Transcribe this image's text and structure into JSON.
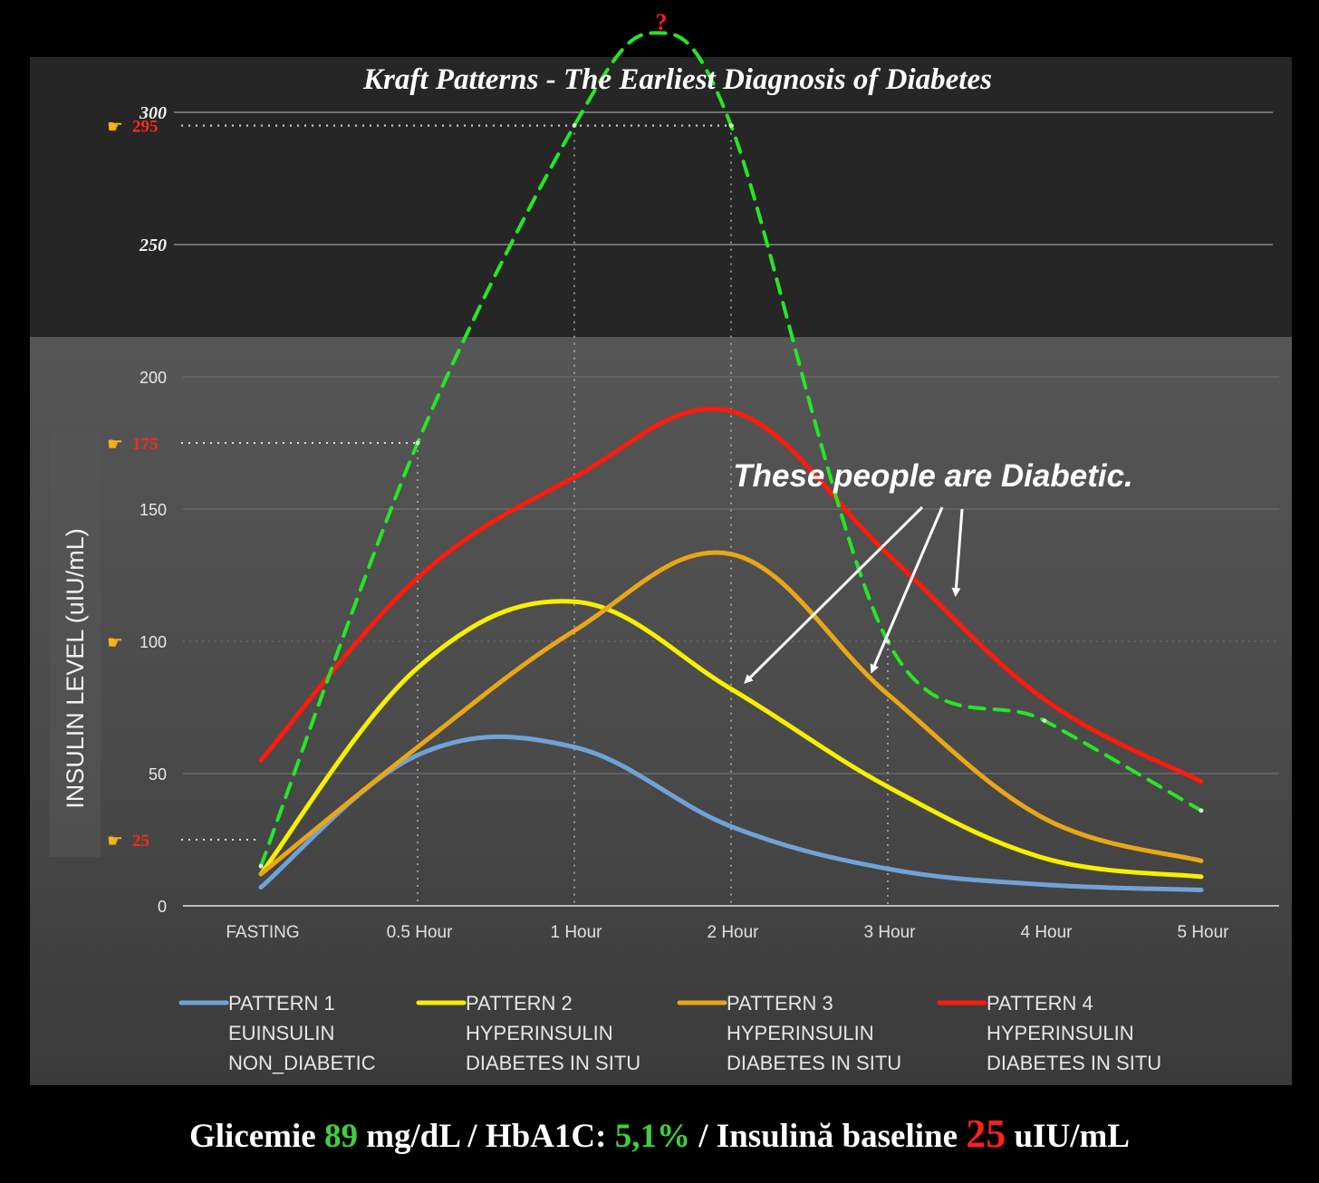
{
  "chart_data": {
    "type": "line",
    "title": "Kraft Patterns - The Earliest Diagnosis of Diabetes",
    "ylabel": "INSULIN LEVEL (uIU/mL)",
    "xlabel": "",
    "categories": [
      "FASTING",
      "0.5 Hour",
      "1 Hour",
      "2 Hour",
      "3 Hour",
      "4 Hour",
      "5 Hour"
    ],
    "y_ticks_lower": [
      "0",
      "50",
      "100",
      "150",
      "200"
    ],
    "y_ticks_upper": [
      "250",
      "300"
    ],
    "ylim": [
      0,
      300
    ],
    "grid": true,
    "legend_position": "bottom",
    "series": [
      {
        "name": "PATTERN 1",
        "subtitle1": "EUINSULIN",
        "subtitle2": "NON_DIABETIC",
        "color": "#6fa3d8",
        "values": [
          7,
          57,
          60,
          30,
          14,
          8,
          6
        ]
      },
      {
        "name": "PATTERN 2",
        "subtitle1": "HYPERINSULIN",
        "subtitle2": "DIABETES IN SITU",
        "color": "#f6f000",
        "values": [
          12,
          90,
          115,
          82,
          45,
          18,
          11
        ]
      },
      {
        "name": "PATTERN 3",
        "subtitle1": "HYPERINSULIN",
        "subtitle2": "DIABETES IN SITU",
        "color": "#e8a717",
        "values": [
          12,
          60,
          104,
          133,
          80,
          33,
          17
        ]
      },
      {
        "name": "PATTERN 4",
        "subtitle1": "HYPERINSULIN",
        "subtitle2": "DIABETES IN SITU",
        "color": "#ff1a0a",
        "values": [
          55,
          124,
          162,
          187,
          133,
          78,
          47
        ]
      },
      {
        "color": "#26e626",
        "dashed": true,
        "values": [
          15,
          175,
          295,
          295,
          100,
          70,
          36
        ],
        "peak_label": "?"
      }
    ],
    "reference_markers": [
      {
        "value": 295,
        "label": "295"
      },
      {
        "value": 175,
        "label": "175"
      },
      {
        "value": 100,
        "label": ""
      },
      {
        "value": 25,
        "label": "25"
      }
    ],
    "annotation": "These people are Diabetic."
  },
  "footer": {
    "glicemie_label": "Glicemie",
    "glicemie_value": "89",
    "glicemie_unit": "mg/dL  /",
    "hba1c_label": "HbA1C:",
    "hba1c_value": "5,1%",
    "insulina_label": "/ Insulină baseline",
    "insulina_value": "25",
    "insulina_unit": "uIU/mL"
  },
  "colors": {
    "background": "#000000",
    "upper_panel": "#262626",
    "lower_panel": "#4a4a4a",
    "green": "#3fcf3f",
    "red": "#ff1f1f"
  },
  "icons": {
    "marker": "pointing-hand-icon"
  }
}
